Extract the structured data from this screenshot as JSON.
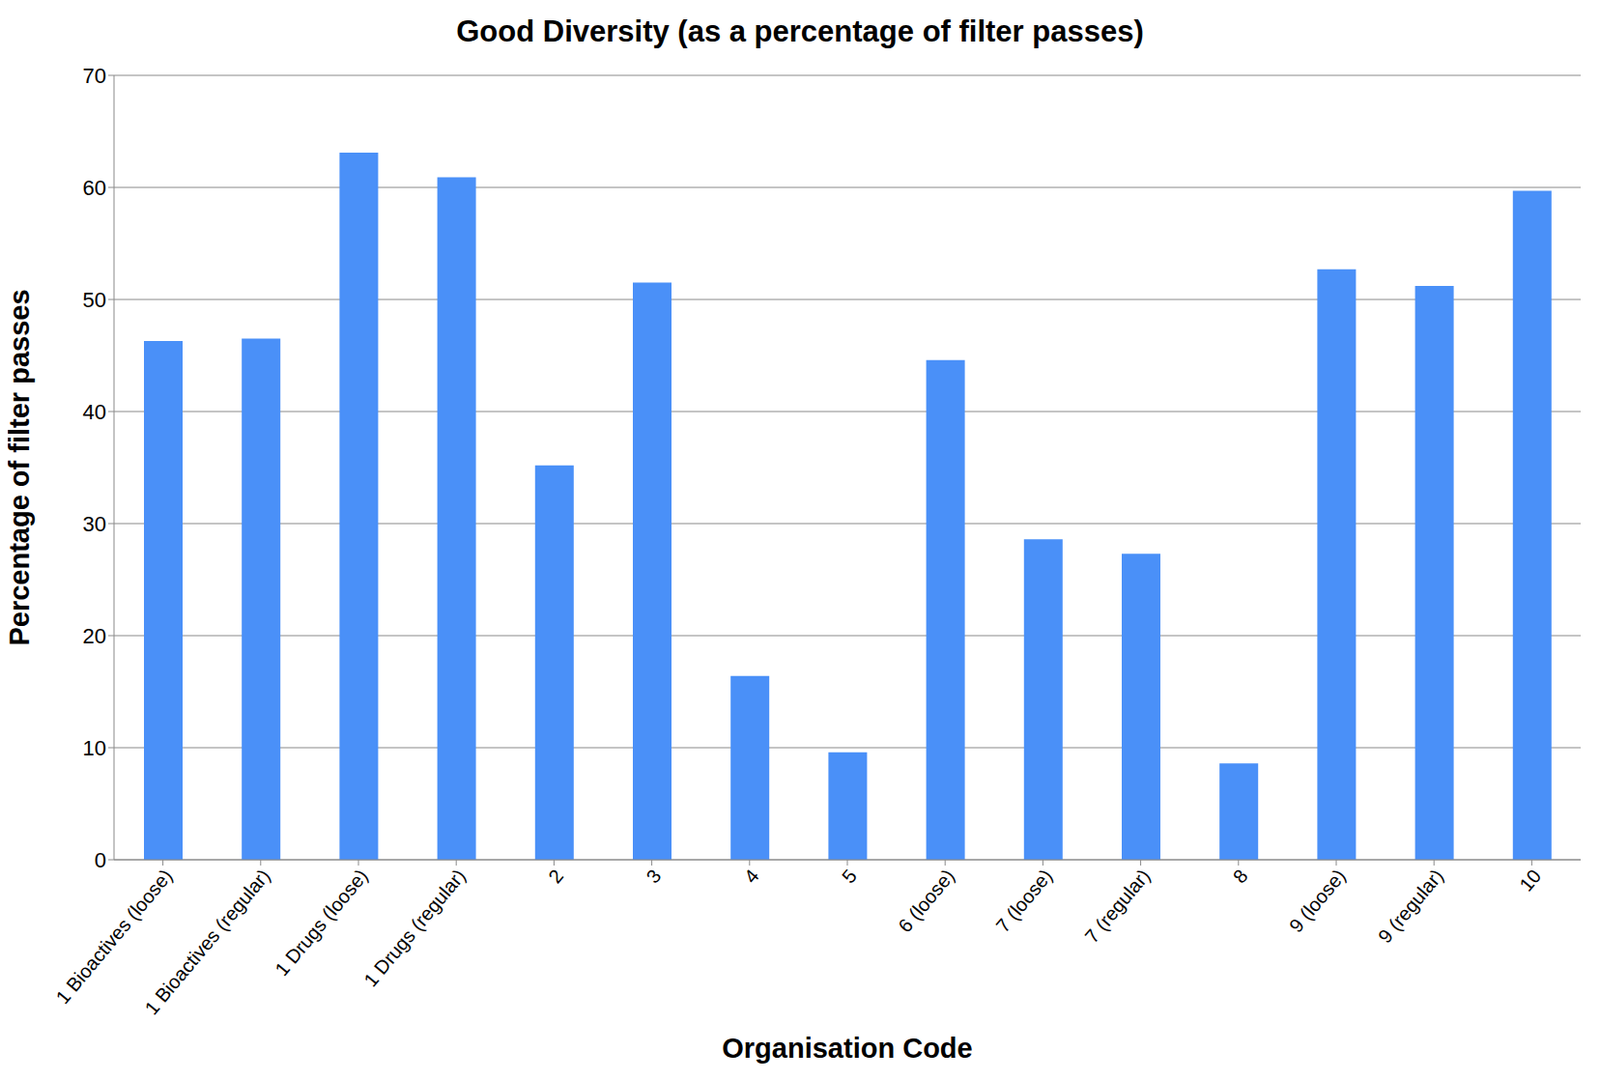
{
  "chart_data": {
    "type": "bar",
    "title": "Good Diversity (as a percentage of filter passes)",
    "x_label": "Organisation Code",
    "y_label": "Percentage of filter passes",
    "categories": [
      "1 Bioactives (loose)",
      "1 Bioactives (regular)",
      "1 Drugs (loose)",
      "1 Drugs (regular)",
      "2",
      "3",
      "4",
      "5",
      "6 (loose)",
      "7 (loose)",
      "7 (regular)",
      "8",
      "9 (loose)",
      "9 (regular)",
      "10"
    ],
    "values": [
      46.3,
      46.5,
      63.1,
      60.9,
      35.2,
      51.5,
      16.4,
      9.6,
      44.6,
      28.6,
      27.3,
      8.6,
      52.7,
      51.2,
      59.7
    ],
    "color": "#4a90f8",
    "ylim": [
      0,
      70
    ],
    "yticks": [
      0,
      10,
      20,
      30,
      40,
      50,
      60,
      70
    ],
    "grid": true
  }
}
